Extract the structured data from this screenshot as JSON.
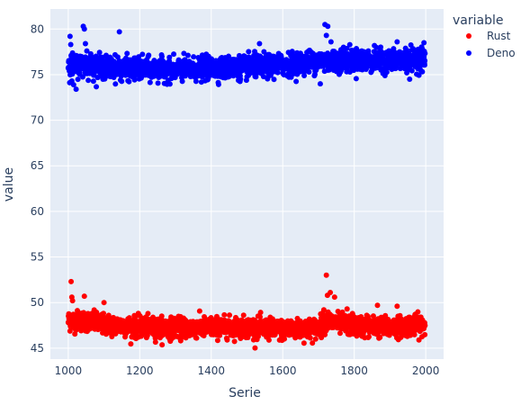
{
  "chart_data": {
    "type": "scatter",
    "title": "",
    "xlabel": "Serie",
    "ylabel": "value",
    "xlim": [
      950,
      2050
    ],
    "ylim": [
      43.8,
      82.2
    ],
    "xticks": [
      1000,
      1200,
      1400,
      1600,
      1800,
      2000
    ],
    "yticks": [
      45,
      50,
      55,
      60,
      65,
      70,
      75,
      80
    ],
    "grid": true,
    "legend": {
      "title": "variable",
      "placement": "top-right"
    },
    "background_color": "#e5ecf6",
    "series": [
      {
        "name": "Rust",
        "color": "#ff0000",
        "baseline": [
          [
            1000,
            48.0
          ],
          [
            1050,
            48.0
          ],
          [
            1100,
            47.6
          ],
          [
            1200,
            47.3
          ],
          [
            1300,
            47.2
          ],
          [
            1400,
            47.3
          ],
          [
            1500,
            47.3
          ],
          [
            1600,
            47.0
          ],
          [
            1700,
            47.2
          ],
          [
            1720,
            48.0
          ],
          [
            1800,
            47.4
          ],
          [
            1900,
            47.3
          ],
          [
            2000,
            47.6
          ]
        ],
        "spread": 0.55,
        "notable_points": [
          [
            1008,
            52.3
          ],
          [
            1010,
            50.6
          ],
          [
            1012,
            50.2
          ],
          [
            1045,
            50.7
          ],
          [
            1100,
            50.0
          ],
          [
            1715,
            49.2
          ],
          [
            1722,
            53.0
          ],
          [
            1725,
            50.8
          ],
          [
            1733,
            51.1
          ],
          [
            1745,
            50.6
          ],
          [
            1780,
            49.3
          ],
          [
            1795,
            48.8
          ],
          [
            1835,
            48.6
          ],
          [
            1865,
            49.7
          ],
          [
            1920,
            49.6
          ]
        ]
      },
      {
        "name": "Deno",
        "color": "#0000ff",
        "baseline": [
          [
            1000,
            76.0
          ],
          [
            1050,
            76.1
          ],
          [
            1100,
            75.8
          ],
          [
            1200,
            75.6
          ],
          [
            1300,
            75.5
          ],
          [
            1400,
            75.7
          ],
          [
            1500,
            75.8
          ],
          [
            1600,
            76.1
          ],
          [
            1700,
            76.5
          ],
          [
            1800,
            76.6
          ],
          [
            1900,
            76.5
          ],
          [
            2000,
            76.8
          ]
        ],
        "spread": 0.6,
        "notable_points": [
          [
            1005,
            79.2
          ],
          [
            1007,
            78.3
          ],
          [
            1010,
            74.3
          ],
          [
            1015,
            73.9
          ],
          [
            1022,
            73.4
          ],
          [
            1042,
            80.3
          ],
          [
            1045,
            80.0
          ],
          [
            1048,
            78.4
          ],
          [
            1052,
            77.6
          ],
          [
            1143,
            79.7
          ],
          [
            1535,
            78.4
          ],
          [
            1718,
            80.5
          ],
          [
            1722,
            79.3
          ],
          [
            1726,
            80.3
          ],
          [
            1735,
            78.6
          ],
          [
            1705,
            74.0
          ],
          [
            1770,
            78.0
          ],
          [
            1920,
            78.6
          ],
          [
            1995,
            78.5
          ],
          [
            1955,
            74.5
          ]
        ]
      }
    ]
  }
}
